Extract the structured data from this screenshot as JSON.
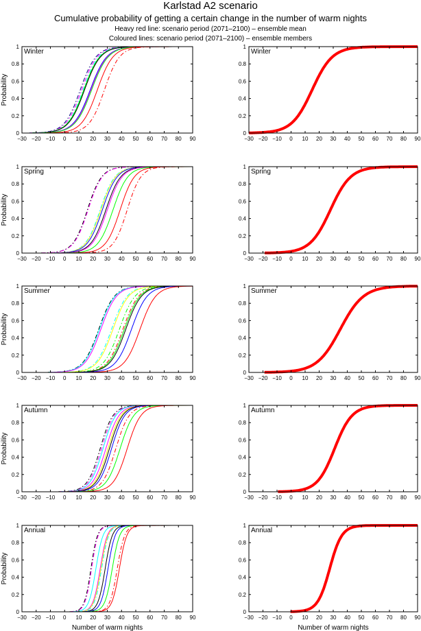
{
  "header": {
    "title": "Karlstad A2 scenario",
    "subtitle": "Cumulative probability of getting a certain change in the number of warm nights",
    "note_heavy": "Heavy red line: scenario period (2071–2100) – ensemble mean",
    "note_coloured": "Coloured lines: scenario period (2071–2100) – ensemble members"
  },
  "colors": {
    "mean": "#ff0000",
    "members": [
      "#000000",
      "#0000ff",
      "#00ff00",
      "#ff00ff",
      "#00ffff",
      "#ffff00",
      "#ff0000",
      "#000080"
    ]
  },
  "chart_data": {
    "type": "line",
    "description": "Cumulative distribution functions (approximated as logistic curves with median m and scale s, read from the figure)",
    "xlabel": "Number of warm nights",
    "ylabel": "Probability",
    "xlim": [
      -30,
      90
    ],
    "ylim": [
      0,
      1
    ],
    "xticks": [
      -30,
      -20,
      -10,
      0,
      10,
      20,
      30,
      40,
      50,
      60,
      70,
      80,
      90
    ],
    "yticks": [
      0,
      0.2,
      0.4,
      0.6,
      0.8,
      1
    ],
    "yticklabels": [
      "0",
      "0.2",
      "0.4",
      "0.6",
      "0.8",
      "1"
    ],
    "grid": false,
    "panels": [
      {
        "season": "Winter",
        "members": [
          {
            "color": "#000080",
            "style": "dashdot",
            "median": 11,
            "scale": 5.5
          },
          {
            "color": "#ff00ff",
            "style": "dashdot",
            "median": 12,
            "scale": 5.5
          },
          {
            "color": "#00ffff",
            "style": "dashdot",
            "median": 13,
            "scale": 5.5
          },
          {
            "color": "#00ff00",
            "style": "solid",
            "median": 13.5,
            "scale": 5.6
          },
          {
            "color": "#000000",
            "style": "solid",
            "median": 14,
            "scale": 5.6
          },
          {
            "color": "#0000ff",
            "style": "solid",
            "median": 18,
            "scale": 5.8
          },
          {
            "color": "#ff00ff",
            "style": "solid",
            "median": 18.5,
            "scale": 5.8
          },
          {
            "color": "#00ff00",
            "style": "solid",
            "median": 19,
            "scale": 5.8
          },
          {
            "color": "#ff0000",
            "style": "solid",
            "median": 23,
            "scale": 5.5
          },
          {
            "color": "#ff0000",
            "style": "dashdot",
            "median": 28,
            "scale": 5.3
          }
        ],
        "ensemble_mean": {
          "median": 15,
          "scale": 7.2
        }
      },
      {
        "season": "Spring",
        "members": [
          {
            "color": "#000000",
            "style": "dashdot",
            "median": 16,
            "scale": 5.0
          },
          {
            "color": "#ff00ff",
            "style": "dashdot",
            "median": 16.5,
            "scale": 5.0
          },
          {
            "color": "#00ffff",
            "style": "dashdot",
            "median": 25,
            "scale": 5.2
          },
          {
            "color": "#ffff00",
            "style": "solid",
            "median": 25.5,
            "scale": 5.2
          },
          {
            "color": "#0000ff",
            "style": "solid",
            "median": 26.5,
            "scale": 5.2
          },
          {
            "color": "#000000",
            "style": "solid",
            "median": 29,
            "scale": 5.2
          },
          {
            "color": "#ff00ff",
            "style": "solid",
            "median": 30,
            "scale": 5.2
          },
          {
            "color": "#00ff00",
            "style": "solid",
            "median": 34,
            "scale": 5.2
          },
          {
            "color": "#ff0000",
            "style": "solid",
            "median": 39,
            "scale": 5.0
          },
          {
            "color": "#ff0000",
            "style": "dashdot",
            "median": 44,
            "scale": 4.8
          }
        ],
        "ensemble_mean": {
          "median": 28,
          "scale": 7.2
        }
      },
      {
        "season": "Summer",
        "members": [
          {
            "color": "#000000",
            "style": "dashdot",
            "median": 24,
            "scale": 5.5
          },
          {
            "color": "#00ffff",
            "style": "solid",
            "median": 24.5,
            "scale": 5.5
          },
          {
            "color": "#ff00ff",
            "style": "solid",
            "median": 25.5,
            "scale": 5.5
          },
          {
            "color": "#00ffff",
            "style": "dashdot",
            "median": 33,
            "scale": 5.5
          },
          {
            "color": "#ffff00",
            "style": "solid",
            "median": 34,
            "scale": 5.5
          },
          {
            "color": "#00ff00",
            "style": "dashdot",
            "median": 38.5,
            "scale": 5.5
          },
          {
            "color": "#ff0000",
            "style": "dashdot",
            "median": 41,
            "scale": 5.5
          },
          {
            "color": "#00ff00",
            "style": "solid",
            "median": 42,
            "scale": 5.5
          },
          {
            "color": "#000000",
            "style": "solid",
            "median": 43,
            "scale": 5.5
          },
          {
            "color": "#0000ff",
            "style": "solid",
            "median": 47,
            "scale": 5.5
          },
          {
            "color": "#ff0000",
            "style": "solid",
            "median": 53,
            "scale": 5.5
          }
        ],
        "ensemble_mean": {
          "median": 35,
          "scale": 8.3
        }
      },
      {
        "season": "Autumn",
        "members": [
          {
            "color": "#000000",
            "style": "dashdot",
            "median": 25,
            "scale": 4.5
          },
          {
            "color": "#ff00ff",
            "style": "dashdot",
            "median": 26,
            "scale": 4.5
          },
          {
            "color": "#00ffff",
            "style": "solid",
            "median": 27,
            "scale": 4.5
          },
          {
            "color": "#ff00ff",
            "style": "solid",
            "median": 29,
            "scale": 4.6
          },
          {
            "color": "#ffff00",
            "style": "solid",
            "median": 30.5,
            "scale": 4.6
          },
          {
            "color": "#000000",
            "style": "solid",
            "median": 31.5,
            "scale": 4.6
          },
          {
            "color": "#0000ff",
            "style": "solid",
            "median": 33,
            "scale": 4.6
          },
          {
            "color": "#ff0000",
            "style": "dashdot",
            "median": 36,
            "scale": 4.7
          },
          {
            "color": "#00ff00",
            "style": "solid",
            "median": 39,
            "scale": 4.8
          },
          {
            "color": "#ff0000",
            "style": "solid",
            "median": 44,
            "scale": 4.8
          }
        ],
        "ensemble_mean": {
          "median": 31,
          "scale": 6.2
        }
      },
      {
        "season": "Annual",
        "members": [
          {
            "color": "#000000",
            "style": "dashdot",
            "median": 18.5,
            "scale": 2.3
          },
          {
            "color": "#ff00ff",
            "style": "dashdot",
            "median": 19,
            "scale": 2.3
          },
          {
            "color": "#00ffff",
            "style": "solid",
            "median": 22,
            "scale": 2.5
          },
          {
            "color": "#ff00ff",
            "style": "solid",
            "median": 25,
            "scale": 2.5
          },
          {
            "color": "#ffff00",
            "style": "solid",
            "median": 25.5,
            "scale": 2.5
          },
          {
            "color": "#00ffff",
            "style": "dashdot",
            "median": 26,
            "scale": 2.5
          },
          {
            "color": "#000000",
            "style": "solid",
            "median": 28.5,
            "scale": 2.5
          },
          {
            "color": "#0000ff",
            "style": "solid",
            "median": 30.5,
            "scale": 2.5
          },
          {
            "color": "#00ff00",
            "style": "solid",
            "median": 33.5,
            "scale": 2.6
          },
          {
            "color": "#ff0000",
            "style": "dashdot",
            "median": 37,
            "scale": 2.6
          },
          {
            "color": "#ff0000",
            "style": "solid",
            "median": 38.5,
            "scale": 2.6
          }
        ],
        "ensemble_mean": {
          "median": 27.5,
          "scale": 4.3
        }
      }
    ]
  }
}
